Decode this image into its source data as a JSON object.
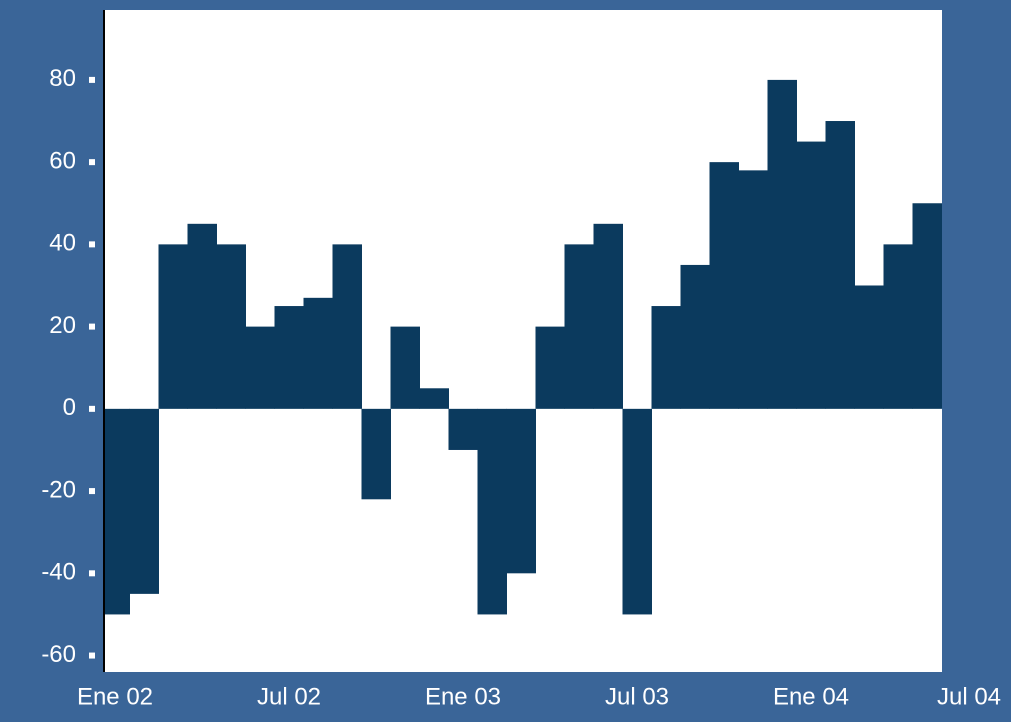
{
  "chart_data": {
    "type": "bar",
    "color": "#0b3a5e",
    "x": [
      "2002-01",
      "2002-02",
      "2002-03",
      "2002-04",
      "2002-05",
      "2002-06",
      "2002-07",
      "2002-08",
      "2002-09",
      "2002-10",
      "2002-11",
      "2002-12",
      "2003-01",
      "2003-02",
      "2003-03",
      "2003-04",
      "2003-05",
      "2003-06",
      "2003-07",
      "2003-08",
      "2003-09",
      "2003-10",
      "2003-11",
      "2003-12",
      "2004-01",
      "2004-02",
      "2004-03",
      "2004-04",
      "2004-05"
    ],
    "values": [
      -50,
      -45,
      40,
      45,
      40,
      20,
      25,
      27,
      40,
      -22,
      20,
      5,
      -10,
      -50,
      -40,
      20,
      40,
      45,
      -50,
      25,
      35,
      60,
      58,
      80,
      65,
      70,
      30,
      40,
      50
    ],
    "ylim": [
      -64,
      97
    ],
    "yticks": [
      80,
      60,
      40,
      20,
      0,
      -20,
      -40,
      -60
    ],
    "xlim": [
      "2002-01",
      "2004-07"
    ],
    "xticks": [
      {
        "value": "2002-01",
        "label": "Ene 02"
      },
      {
        "value": "2002-07",
        "label": "Jul 02"
      },
      {
        "value": "2003-01",
        "label": "Ene 03"
      },
      {
        "value": "2003-07",
        "label": "Jul 03"
      },
      {
        "value": "2004-01",
        "label": "Ene 04"
      },
      {
        "value": "2004-07",
        "label": "Jul 04"
      }
    ]
  }
}
